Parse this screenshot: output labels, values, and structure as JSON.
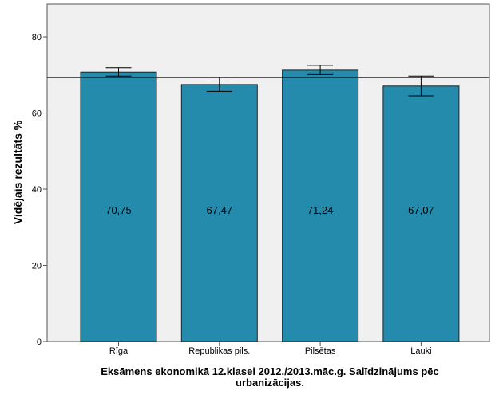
{
  "chart_data": {
    "type": "bar",
    "title": "Eksāmens ekonomikā 12.klasei 2012./2013.māc.g. Salīdzinājums pēc urbanizācijas.",
    "title_lines": [
      "Eksāmens ekonomikā 12.klasei 2012./2013.māc.g. Salīdzinājums pēc",
      "urbanizācijas."
    ],
    "xlabel": "",
    "ylabel": "Vidējais rezultāts %",
    "categories": [
      "Rīga",
      "Republikas pils.",
      "Pilsētas",
      "Lauki"
    ],
    "values": [
      70.75,
      67.47,
      71.24,
      67.07
    ],
    "data_labels": [
      "70,75",
      "67,47",
      "71,24",
      "67,07"
    ],
    "error_bars": [
      [
        69.7,
        71.9
      ],
      [
        65.7,
        69.4
      ],
      [
        70.1,
        72.5
      ],
      [
        64.5,
        69.7
      ]
    ],
    "reference_line": 69.3,
    "ylim": [
      0,
      88.6
    ],
    "yticks": [
      0,
      20,
      40,
      60,
      80
    ],
    "grid": false,
    "colors": {
      "bar": "#248BAD",
      "plot_background": "#F0F0F0"
    }
  }
}
